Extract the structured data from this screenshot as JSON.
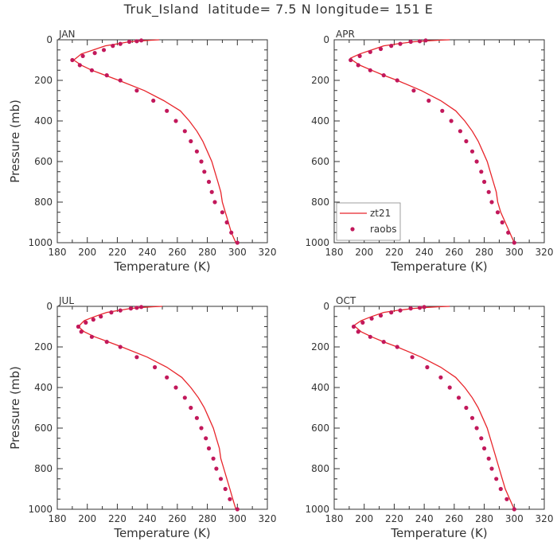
{
  "title": "Truk_Island  latitude= 7.5 N longitude= 151 E",
  "colors": {
    "model": "#e8252b",
    "obs": "#c2185b",
    "axis": "#333333"
  },
  "chart_data": [
    {
      "type": "line",
      "panel": "JAN",
      "xlabel": "Temperature (K)",
      "ylabel": "Pressure (mb)",
      "xlim": [
        180,
        320
      ],
      "ylim": [
        0,
        1000
      ],
      "y_inverted": true,
      "xticks": [
        180,
        200,
        220,
        240,
        260,
        280,
        300,
        320
      ],
      "yticks": [
        0,
        200,
        400,
        600,
        800,
        1000
      ],
      "series": [
        {
          "kind": "line",
          "points": [
            [
              248,
              0
            ],
            [
              243,
              2
            ],
            [
              236,
              5
            ],
            [
              228,
              10
            ],
            [
              220,
              20
            ],
            [
              212,
              30
            ],
            [
              204,
              50
            ],
            [
              196,
              70
            ],
            [
              191,
              100
            ],
            [
              196,
              125
            ],
            [
              203,
              150
            ],
            [
              212,
              175
            ],
            [
              221,
              200
            ],
            [
              238,
              250
            ],
            [
              251,
              300
            ],
            [
              262,
              350
            ],
            [
              268,
              400
            ],
            [
              273,
              450
            ],
            [
              277,
              500
            ],
            [
              280,
              550
            ],
            [
              283,
              600
            ],
            [
              285,
              650
            ],
            [
              287,
              700
            ],
            [
              289,
              750
            ],
            [
              290,
              800
            ],
            [
              292,
              850
            ],
            [
              294,
              900
            ],
            [
              296,
              950
            ],
            [
              299,
              1000
            ]
          ]
        },
        {
          "kind": "scatter",
          "points": [
            [
              236,
              3
            ],
            [
              233,
              7
            ],
            [
              228,
              10
            ],
            [
              222,
              20
            ],
            [
              217,
              30
            ],
            [
              211,
              50
            ],
            [
              205,
              65
            ],
            [
              197,
              80
            ],
            [
              190,
              100
            ],
            [
              195,
              125
            ],
            [
              203,
              150
            ],
            [
              213,
              175
            ],
            [
              222,
              200
            ],
            [
              233,
              250
            ],
            [
              244,
              300
            ],
            [
              253,
              350
            ],
            [
              259,
              400
            ],
            [
              265,
              450
            ],
            [
              269,
              500
            ],
            [
              273,
              550
            ],
            [
              276,
              600
            ],
            [
              278,
              650
            ],
            [
              281,
              700
            ],
            [
              283,
              750
            ],
            [
              285,
              800
            ],
            [
              290,
              850
            ],
            [
              293,
              900
            ],
            [
              296,
              950
            ],
            [
              300,
              1000
            ]
          ]
        }
      ]
    },
    {
      "type": "line",
      "panel": "APR",
      "xlabel": "Temperature (K)",
      "ylabel": "",
      "xlim": [
        180,
        320
      ],
      "ylim": [
        0,
        1000
      ],
      "y_inverted": true,
      "xticks": [
        180,
        200,
        220,
        240,
        260,
        280,
        300,
        320
      ],
      "yticks": [
        0,
        200,
        400,
        600,
        800,
        1000
      ],
      "legend": {
        "placement": "bottom-left",
        "entries": [
          "zt21",
          "raobs"
        ]
      },
      "series": [
        {
          "name": "zt21",
          "kind": "line",
          "points": [
            [
              257,
              0
            ],
            [
              250,
              2
            ],
            [
              242,
              5
            ],
            [
              233,
              10
            ],
            [
              222,
              20
            ],
            [
              213,
              30
            ],
            [
              205,
              50
            ],
            [
              197,
              70
            ],
            [
              191,
              90
            ],
            [
              192,
              100
            ],
            [
              197,
              125
            ],
            [
              205,
              150
            ],
            [
              213,
              175
            ],
            [
              222,
              200
            ],
            [
              238,
              250
            ],
            [
              251,
              300
            ],
            [
              261,
              350
            ],
            [
              267,
              400
            ],
            [
              272,
              450
            ],
            [
              276,
              500
            ],
            [
              279,
              550
            ],
            [
              282,
              600
            ],
            [
              284,
              650
            ],
            [
              286,
              700
            ],
            [
              288,
              750
            ],
            [
              289,
              800
            ],
            [
              291,
              850
            ],
            [
              294,
              900
            ],
            [
              297,
              950
            ],
            [
              300,
              1000
            ]
          ]
        },
        {
          "name": "raobs",
          "kind": "scatter",
          "points": [
            [
              241,
              3
            ],
            [
              237,
              7
            ],
            [
              231,
              10
            ],
            [
              224,
              20
            ],
            [
              218,
              30
            ],
            [
              211,
              45
            ],
            [
              204,
              60
            ],
            [
              197,
              80
            ],
            [
              191,
              100
            ],
            [
              196,
              125
            ],
            [
              204,
              150
            ],
            [
              213,
              175
            ],
            [
              222,
              200
            ],
            [
              233,
              250
            ],
            [
              243,
              300
            ],
            [
              252,
              350
            ],
            [
              258,
              400
            ],
            [
              264,
              450
            ],
            [
              268,
              500
            ],
            [
              272,
              550
            ],
            [
              275,
              600
            ],
            [
              278,
              650
            ],
            [
              280,
              700
            ],
            [
              283,
              750
            ],
            [
              285,
              800
            ],
            [
              289,
              850
            ],
            [
              292,
              900
            ],
            [
              296,
              950
            ],
            [
              300,
              1000
            ]
          ]
        }
      ]
    },
    {
      "type": "line",
      "panel": "JUL",
      "xlabel": "Temperature (K)",
      "ylabel": "Pressure (mb)",
      "xlim": [
        180,
        320
      ],
      "ylim": [
        0,
        1000
      ],
      "y_inverted": true,
      "xticks": [
        180,
        200,
        220,
        240,
        260,
        280,
        300,
        320
      ],
      "yticks": [
        0,
        200,
        400,
        600,
        800,
        1000
      ],
      "series": [
        {
          "kind": "line",
          "points": [
            [
              250,
              0
            ],
            [
              244,
              2
            ],
            [
              237,
              5
            ],
            [
              229,
              10
            ],
            [
              221,
              20
            ],
            [
              213,
              30
            ],
            [
              205,
              50
            ],
            [
              198,
              70
            ],
            [
              194,
              100
            ],
            [
              198,
              125
            ],
            [
              205,
              150
            ],
            [
              214,
              175
            ],
            [
              223,
              200
            ],
            [
              240,
              250
            ],
            [
              253,
              300
            ],
            [
              263,
              350
            ],
            [
              269,
              400
            ],
            [
              274,
              450
            ],
            [
              278,
              500
            ],
            [
              281,
              550
            ],
            [
              284,
              600
            ],
            [
              286,
              650
            ],
            [
              288,
              700
            ],
            [
              289,
              750
            ],
            [
              291,
              800
            ],
            [
              293,
              850
            ],
            [
              295,
              900
            ],
            [
              297,
              950
            ],
            [
              299,
              1000
            ]
          ]
        },
        {
          "kind": "scatter",
          "points": [
            [
              236,
              3
            ],
            [
              233,
              7
            ],
            [
              229,
              10
            ],
            [
              222,
              20
            ],
            [
              216,
              30
            ],
            [
              209,
              50
            ],
            [
              204,
              65
            ],
            [
              199,
              80
            ],
            [
              194,
              100
            ],
            [
              196,
              125
            ],
            [
              203,
              150
            ],
            [
              213,
              175
            ],
            [
              222,
              200
            ],
            [
              233,
              250
            ],
            [
              245,
              300
            ],
            [
              253,
              350
            ],
            [
              259,
              400
            ],
            [
              265,
              450
            ],
            [
              269,
              500
            ],
            [
              273,
              550
            ],
            [
              276,
              600
            ],
            [
              279,
              650
            ],
            [
              281,
              700
            ],
            [
              284,
              750
            ],
            [
              286,
              800
            ],
            [
              289,
              850
            ],
            [
              292,
              900
            ],
            [
              295,
              950
            ],
            [
              300,
              1000
            ]
          ]
        }
      ]
    },
    {
      "type": "line",
      "panel": "OCT",
      "xlabel": "Temperature (K)",
      "ylabel": "",
      "xlim": [
        180,
        320
      ],
      "ylim": [
        0,
        1000
      ],
      "y_inverted": true,
      "xticks": [
        180,
        200,
        220,
        240,
        260,
        280,
        300,
        320
      ],
      "yticks": [
        0,
        200,
        400,
        600,
        800,
        1000
      ],
      "series": [
        {
          "kind": "line",
          "points": [
            [
              257,
              0
            ],
            [
              250,
              2
            ],
            [
              242,
              5
            ],
            [
              233,
              10
            ],
            [
              222,
              20
            ],
            [
              213,
              30
            ],
            [
              205,
              50
            ],
            [
              198,
              70
            ],
            [
              193,
              95
            ],
            [
              194,
              100
            ],
            [
              198,
              125
            ],
            [
              205,
              150
            ],
            [
              213,
              175
            ],
            [
              222,
              200
            ],
            [
              238,
              250
            ],
            [
              251,
              300
            ],
            [
              261,
              350
            ],
            [
              267,
              400
            ],
            [
              272,
              450
            ],
            [
              276,
              500
            ],
            [
              279,
              550
            ],
            [
              282,
              600
            ],
            [
              284,
              650
            ],
            [
              286,
              700
            ],
            [
              288,
              750
            ],
            [
              290,
              800
            ],
            [
              292,
              850
            ],
            [
              294,
              900
            ],
            [
              297,
              950
            ],
            [
              300,
              1000
            ]
          ]
        },
        {
          "kind": "scatter",
          "points": [
            [
              240,
              3
            ],
            [
              237,
              7
            ],
            [
              231,
              10
            ],
            [
              224,
              20
            ],
            [
              218,
              30
            ],
            [
              211,
              45
            ],
            [
              205,
              60
            ],
            [
              199,
              80
            ],
            [
              193,
              100
            ],
            [
              196,
              125
            ],
            [
              204,
              150
            ],
            [
              213,
              175
            ],
            [
              222,
              200
            ],
            [
              232,
              250
            ],
            [
              242,
              300
            ],
            [
              251,
              350
            ],
            [
              257,
              400
            ],
            [
              263,
              450
            ],
            [
              268,
              500
            ],
            [
              272,
              550
            ],
            [
              275,
              600
            ],
            [
              278,
              650
            ],
            [
              280,
              700
            ],
            [
              283,
              750
            ],
            [
              285,
              800
            ],
            [
              288,
              850
            ],
            [
              291,
              900
            ],
            [
              295,
              950
            ],
            [
              300,
              1000
            ]
          ]
        }
      ]
    }
  ]
}
